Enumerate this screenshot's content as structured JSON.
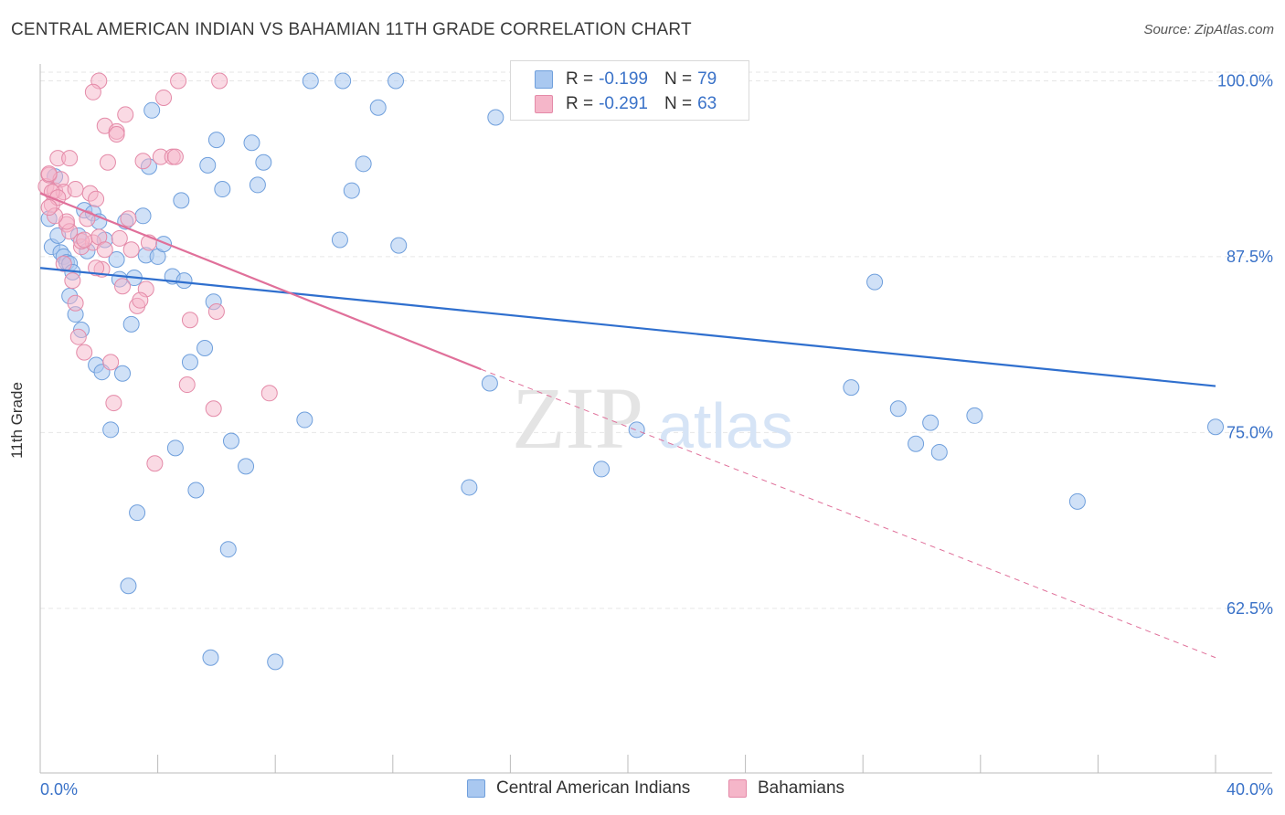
{
  "title": "CENTRAL AMERICAN INDIAN VS BAHAMIAN 11TH GRADE CORRELATION CHART",
  "source": "Source: ZipAtlas.com",
  "watermark": {
    "zip": "ZIP",
    "atlas": "atlas"
  },
  "legend": {
    "rows": [
      {
        "r_label": "R =",
        "r_value": "-0.199",
        "n_label": "N =",
        "n_value": "79"
      },
      {
        "r_label": "R =",
        "r_value": "-0.291",
        "n_label": "N =",
        "n_value": "63"
      }
    ]
  },
  "chart_data": {
    "type": "scatter",
    "title": "CENTRAL AMERICAN INDIAN VS BAHAMIAN 11TH GRADE CORRELATION CHART",
    "xlabel": "",
    "ylabel": "11th Grade",
    "xlim": [
      0,
      40
    ],
    "ylim": [
      50.8,
      101.2
    ],
    "x_tick_labels": [
      "0.0%",
      "40.0%"
    ],
    "y_ticks": [
      62.5,
      75.0,
      87.5,
      100.0
    ],
    "y_tick_labels": [
      "62.5%",
      "75.0%",
      "87.5%",
      "100.0%"
    ],
    "grid": true,
    "legend_placement": "top-center",
    "colors": {
      "blue_fill": "#a9c8f0",
      "blue_stroke": "#6f9fdc",
      "blue_line": "#2f6fce",
      "pink_fill": "#f5b6c9",
      "pink_stroke": "#e48aa8",
      "pink_line": "#e0709a",
      "tick_label": "#3a72c8"
    },
    "series": [
      {
        "name": "Central American Indians",
        "color": "#a9c8f0",
        "points": [
          [
            0.3,
            90.2
          ],
          [
            0.4,
            88.2
          ],
          [
            0.5,
            93.2
          ],
          [
            0.7,
            87.8
          ],
          [
            0.8,
            87.5
          ],
          [
            0.9,
            87.1
          ],
          [
            1.0,
            87.0
          ],
          [
            1.0,
            84.7
          ],
          [
            1.2,
            83.4
          ],
          [
            1.1,
            86.4
          ],
          [
            1.3,
            89.0
          ],
          [
            1.4,
            82.3
          ],
          [
            1.5,
            90.8
          ],
          [
            1.6,
            87.9
          ],
          [
            1.8,
            90.6
          ],
          [
            1.9,
            79.8
          ],
          [
            2.0,
            90.0
          ],
          [
            2.1,
            79.3
          ],
          [
            2.2,
            88.7
          ],
          [
            2.4,
            75.2
          ],
          [
            2.6,
            87.3
          ],
          [
            2.7,
            85.9
          ],
          [
            2.8,
            79.2
          ],
          [
            2.9,
            90.0
          ],
          [
            3.0,
            64.1
          ],
          [
            3.1,
            82.7
          ],
          [
            3.3,
            69.3
          ],
          [
            3.5,
            90.4
          ],
          [
            3.6,
            87.6
          ],
          [
            3.7,
            93.9
          ],
          [
            3.8,
            97.9
          ],
          [
            4.0,
            87.5
          ],
          [
            4.2,
            88.4
          ],
          [
            4.5,
            86.1
          ],
          [
            4.6,
            73.9
          ],
          [
            4.8,
            91.5
          ],
          [
            4.9,
            85.8
          ],
          [
            5.1,
            80.0
          ],
          [
            5.3,
            70.9
          ],
          [
            5.6,
            81.0
          ],
          [
            5.7,
            94.0
          ],
          [
            5.8,
            59.0
          ],
          [
            5.9,
            84.3
          ],
          [
            6.0,
            95.8
          ],
          [
            6.2,
            92.3
          ],
          [
            6.4,
            66.7
          ],
          [
            6.5,
            74.4
          ],
          [
            7.0,
            72.6
          ],
          [
            7.2,
            95.6
          ],
          [
            7.4,
            92.6
          ],
          [
            7.6,
            94.2
          ],
          [
            8.0,
            58.7
          ],
          [
            9.0,
            75.9
          ],
          [
            9.2,
            100.0
          ],
          [
            10.2,
            88.7
          ],
          [
            10.3,
            100.0
          ],
          [
            10.6,
            92.2
          ],
          [
            11.0,
            94.1
          ],
          [
            11.5,
            98.1
          ],
          [
            12.1,
            100.0
          ],
          [
            12.2,
            88.3
          ],
          [
            14.6,
            71.1
          ],
          [
            15.3,
            78.5
          ],
          [
            15.5,
            97.4
          ],
          [
            17.5,
            100.0
          ],
          [
            19.1,
            72.4
          ],
          [
            20.3,
            75.2
          ],
          [
            27.6,
            78.2
          ],
          [
            28.4,
            85.7
          ],
          [
            29.2,
            76.7
          ],
          [
            29.8,
            74.2
          ],
          [
            30.3,
            75.7
          ],
          [
            30.6,
            73.6
          ],
          [
            31.8,
            76.2
          ],
          [
            35.3,
            70.1
          ],
          [
            40.0,
            75.4
          ],
          [
            16.5,
            100.0
          ],
          [
            3.2,
            86.0
          ],
          [
            0.6,
            89.0
          ]
        ]
      },
      {
        "name": "Bahamians",
        "color": "#f5b6c9",
        "points": [
          [
            0.2,
            92.5
          ],
          [
            0.3,
            93.3
          ],
          [
            0.4,
            91.2
          ],
          [
            0.5,
            92.2
          ],
          [
            0.6,
            94.5
          ],
          [
            0.7,
            93.0
          ],
          [
            0.8,
            92.1
          ],
          [
            0.9,
            89.8
          ],
          [
            1.0,
            89.3
          ],
          [
            1.1,
            85.8
          ],
          [
            1.2,
            84.2
          ],
          [
            1.3,
            81.8
          ],
          [
            1.4,
            88.2
          ],
          [
            1.5,
            80.7
          ],
          [
            1.6,
            90.2
          ],
          [
            1.7,
            92.0
          ],
          [
            1.8,
            88.5
          ],
          [
            1.9,
            91.6
          ],
          [
            2.0,
            88.9
          ],
          [
            2.1,
            86.6
          ],
          [
            2.2,
            96.8
          ],
          [
            2.3,
            94.2
          ],
          [
            2.4,
            80.0
          ],
          [
            2.5,
            77.1
          ],
          [
            2.6,
            96.4
          ],
          [
            2.7,
            88.8
          ],
          [
            2.8,
            85.4
          ],
          [
            2.9,
            97.6
          ],
          [
            3.0,
            90.2
          ],
          [
            3.1,
            88.0
          ],
          [
            3.3,
            84.0
          ],
          [
            3.5,
            94.3
          ],
          [
            3.6,
            85.2
          ],
          [
            3.7,
            88.5
          ],
          [
            3.9,
            72.8
          ],
          [
            4.1,
            94.6
          ],
          [
            4.2,
            98.8
          ],
          [
            4.5,
            94.6
          ],
          [
            4.6,
            94.6
          ],
          [
            4.7,
            100.0
          ],
          [
            5.0,
            78.4
          ],
          [
            5.1,
            83.0
          ],
          [
            5.9,
            76.7
          ],
          [
            6.0,
            83.6
          ],
          [
            6.1,
            100.0
          ],
          [
            7.8,
            77.8
          ],
          [
            2.0,
            100.0
          ],
          [
            1.8,
            99.2
          ],
          [
            1.0,
            94.5
          ],
          [
            0.3,
            93.4
          ],
          [
            0.4,
            92.1
          ],
          [
            0.6,
            91.7
          ],
          [
            0.9,
            90.0
          ],
          [
            1.4,
            88.6
          ],
          [
            1.9,
            86.7
          ],
          [
            2.6,
            96.2
          ],
          [
            0.5,
            90.4
          ],
          [
            1.2,
            92.3
          ],
          [
            0.8,
            87.0
          ],
          [
            0.3,
            91.0
          ],
          [
            1.5,
            88.7
          ],
          [
            2.2,
            88.0
          ],
          [
            3.4,
            84.4
          ]
        ]
      }
    ],
    "trendlines": [
      {
        "series": "Central American Indians",
        "x0": 0,
        "y0": 86.7,
        "x1": 40,
        "y1": 78.3,
        "style": "solid"
      },
      {
        "series": "Bahamians",
        "x0": 0,
        "y0": 92.0,
        "x1": 15.0,
        "y1": 79.5,
        "style": "solid"
      },
      {
        "series": "Bahamians",
        "x0": 15.0,
        "y0": 79.5,
        "x1": 40,
        "y1": 59.0,
        "style": "dashed"
      }
    ]
  }
}
